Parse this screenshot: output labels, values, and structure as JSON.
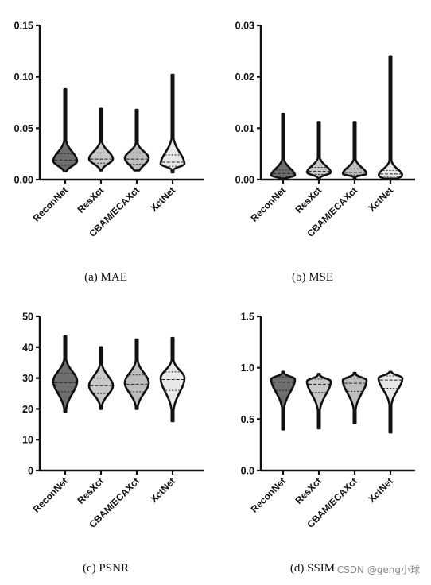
{
  "chart_data": [
    {
      "type": "violin",
      "caption": "(a) MAE",
      "categories": [
        "ReconNet",
        "ResXct",
        "CBAM/ECAXct",
        "XctNet"
      ],
      "ylim": [
        0,
        0.15
      ],
      "yticks": [
        "0.00",
        "0.05",
        "0.10",
        "0.15"
      ],
      "yticks_values": [
        0,
        0.05,
        0.1,
        0.15
      ],
      "series": [
        {
          "min": 0.008,
          "max": 0.088,
          "q1": 0.014,
          "median": 0.019,
          "q3": 0.025,
          "mode": 0.018,
          "fill": "#6e6e6e"
        },
        {
          "min": 0.009,
          "max": 0.069,
          "q1": 0.016,
          "median": 0.02,
          "q3": 0.026,
          "mode": 0.02,
          "fill": "#c8c8c8"
        },
        {
          "min": 0.009,
          "max": 0.068,
          "q1": 0.015,
          "median": 0.02,
          "q3": 0.026,
          "mode": 0.021,
          "fill": "#bdbdbd"
        },
        {
          "min": 0.007,
          "max": 0.102,
          "q1": 0.013,
          "median": 0.017,
          "q3": 0.024,
          "mode": 0.015,
          "fill": "#e8e8e8"
        }
      ]
    },
    {
      "type": "violin",
      "caption": "(b) MSE",
      "categories": [
        "ReconNet",
        "ResXct",
        "CBAM/ECAXct",
        "XctNet"
      ],
      "ylim": [
        0,
        0.03
      ],
      "yticks": [
        "0.00",
        "0.01",
        "0.02",
        "0.03"
      ],
      "yticks_values": [
        0,
        0.01,
        0.02,
        0.03
      ],
      "series": [
        {
          "min": 0.0002,
          "max": 0.0128,
          "q1": 0.0007,
          "median": 0.0012,
          "q3": 0.0019,
          "mode": 0.0008,
          "fill": "#6e6e6e"
        },
        {
          "min": 0.0003,
          "max": 0.0112,
          "q1": 0.001,
          "median": 0.0016,
          "q3": 0.0024,
          "mode": 0.0014,
          "fill": "#c8c8c8"
        },
        {
          "min": 0.0003,
          "max": 0.0112,
          "q1": 0.0009,
          "median": 0.0014,
          "q3": 0.0021,
          "mode": 0.0011,
          "fill": "#bdbdbd"
        },
        {
          "min": 0.0002,
          "max": 0.024,
          "q1": 0.0006,
          "median": 0.0011,
          "q3": 0.0018,
          "mode": 0.0008,
          "fill": "#e8e8e8"
        }
      ]
    },
    {
      "type": "violin",
      "caption": "(c) PSNR",
      "categories": [
        "ReconNet",
        "ResXct",
        "CBAM/ECAXct",
        "XctNet"
      ],
      "ylim": [
        0,
        50
      ],
      "yticks": [
        "0",
        "10",
        "20",
        "30",
        "40",
        "50"
      ],
      "yticks_values": [
        0,
        10,
        20,
        30,
        40,
        50
      ],
      "series": [
        {
          "min": 19,
          "max": 43.5,
          "q1": 25.5,
          "median": 28.5,
          "q3": 31.5,
          "mode": 29,
          "fill": "#6e6e6e"
        },
        {
          "min": 20,
          "max": 40,
          "q1": 25,
          "median": 27.5,
          "q3": 30,
          "mode": 27.5,
          "fill": "#c8c8c8"
        },
        {
          "min": 20,
          "max": 42.5,
          "q1": 25.5,
          "median": 28,
          "q3": 31,
          "mode": 28.5,
          "fill": "#bdbdbd"
        },
        {
          "min": 16,
          "max": 43,
          "q1": 26,
          "median": 29.5,
          "q3": 32,
          "mode": 30,
          "fill": "#e8e8e8"
        }
      ]
    },
    {
      "type": "violin",
      "caption": "(d) SSIM",
      "categories": [
        "ReconNet",
        "ResXct",
        "CBAM/ECAXct",
        "XctNet"
      ],
      "ylim": [
        0,
        1.5
      ],
      "yticks": [
        "0.0",
        "0.5",
        "1.0",
        "1.5"
      ],
      "yticks_values": [
        0,
        0.5,
        1.0,
        1.5
      ],
      "series": [
        {
          "min": 0.4,
          "max": 0.96,
          "q1": 0.78,
          "median": 0.86,
          "q3": 0.91,
          "mode": 0.89,
          "fill": "#6e6e6e"
        },
        {
          "min": 0.41,
          "max": 0.94,
          "q1": 0.76,
          "median": 0.84,
          "q3": 0.89,
          "mode": 0.87,
          "fill": "#c8c8c8"
        },
        {
          "min": 0.46,
          "max": 0.95,
          "q1": 0.77,
          "median": 0.85,
          "q3": 0.9,
          "mode": 0.88,
          "fill": "#bdbdbd"
        },
        {
          "min": 0.37,
          "max": 0.96,
          "q1": 0.8,
          "median": 0.88,
          "q3": 0.92,
          "mode": 0.9,
          "fill": "#e8e8e8"
        }
      ]
    }
  ],
  "watermark": "CSDN @geng小球"
}
